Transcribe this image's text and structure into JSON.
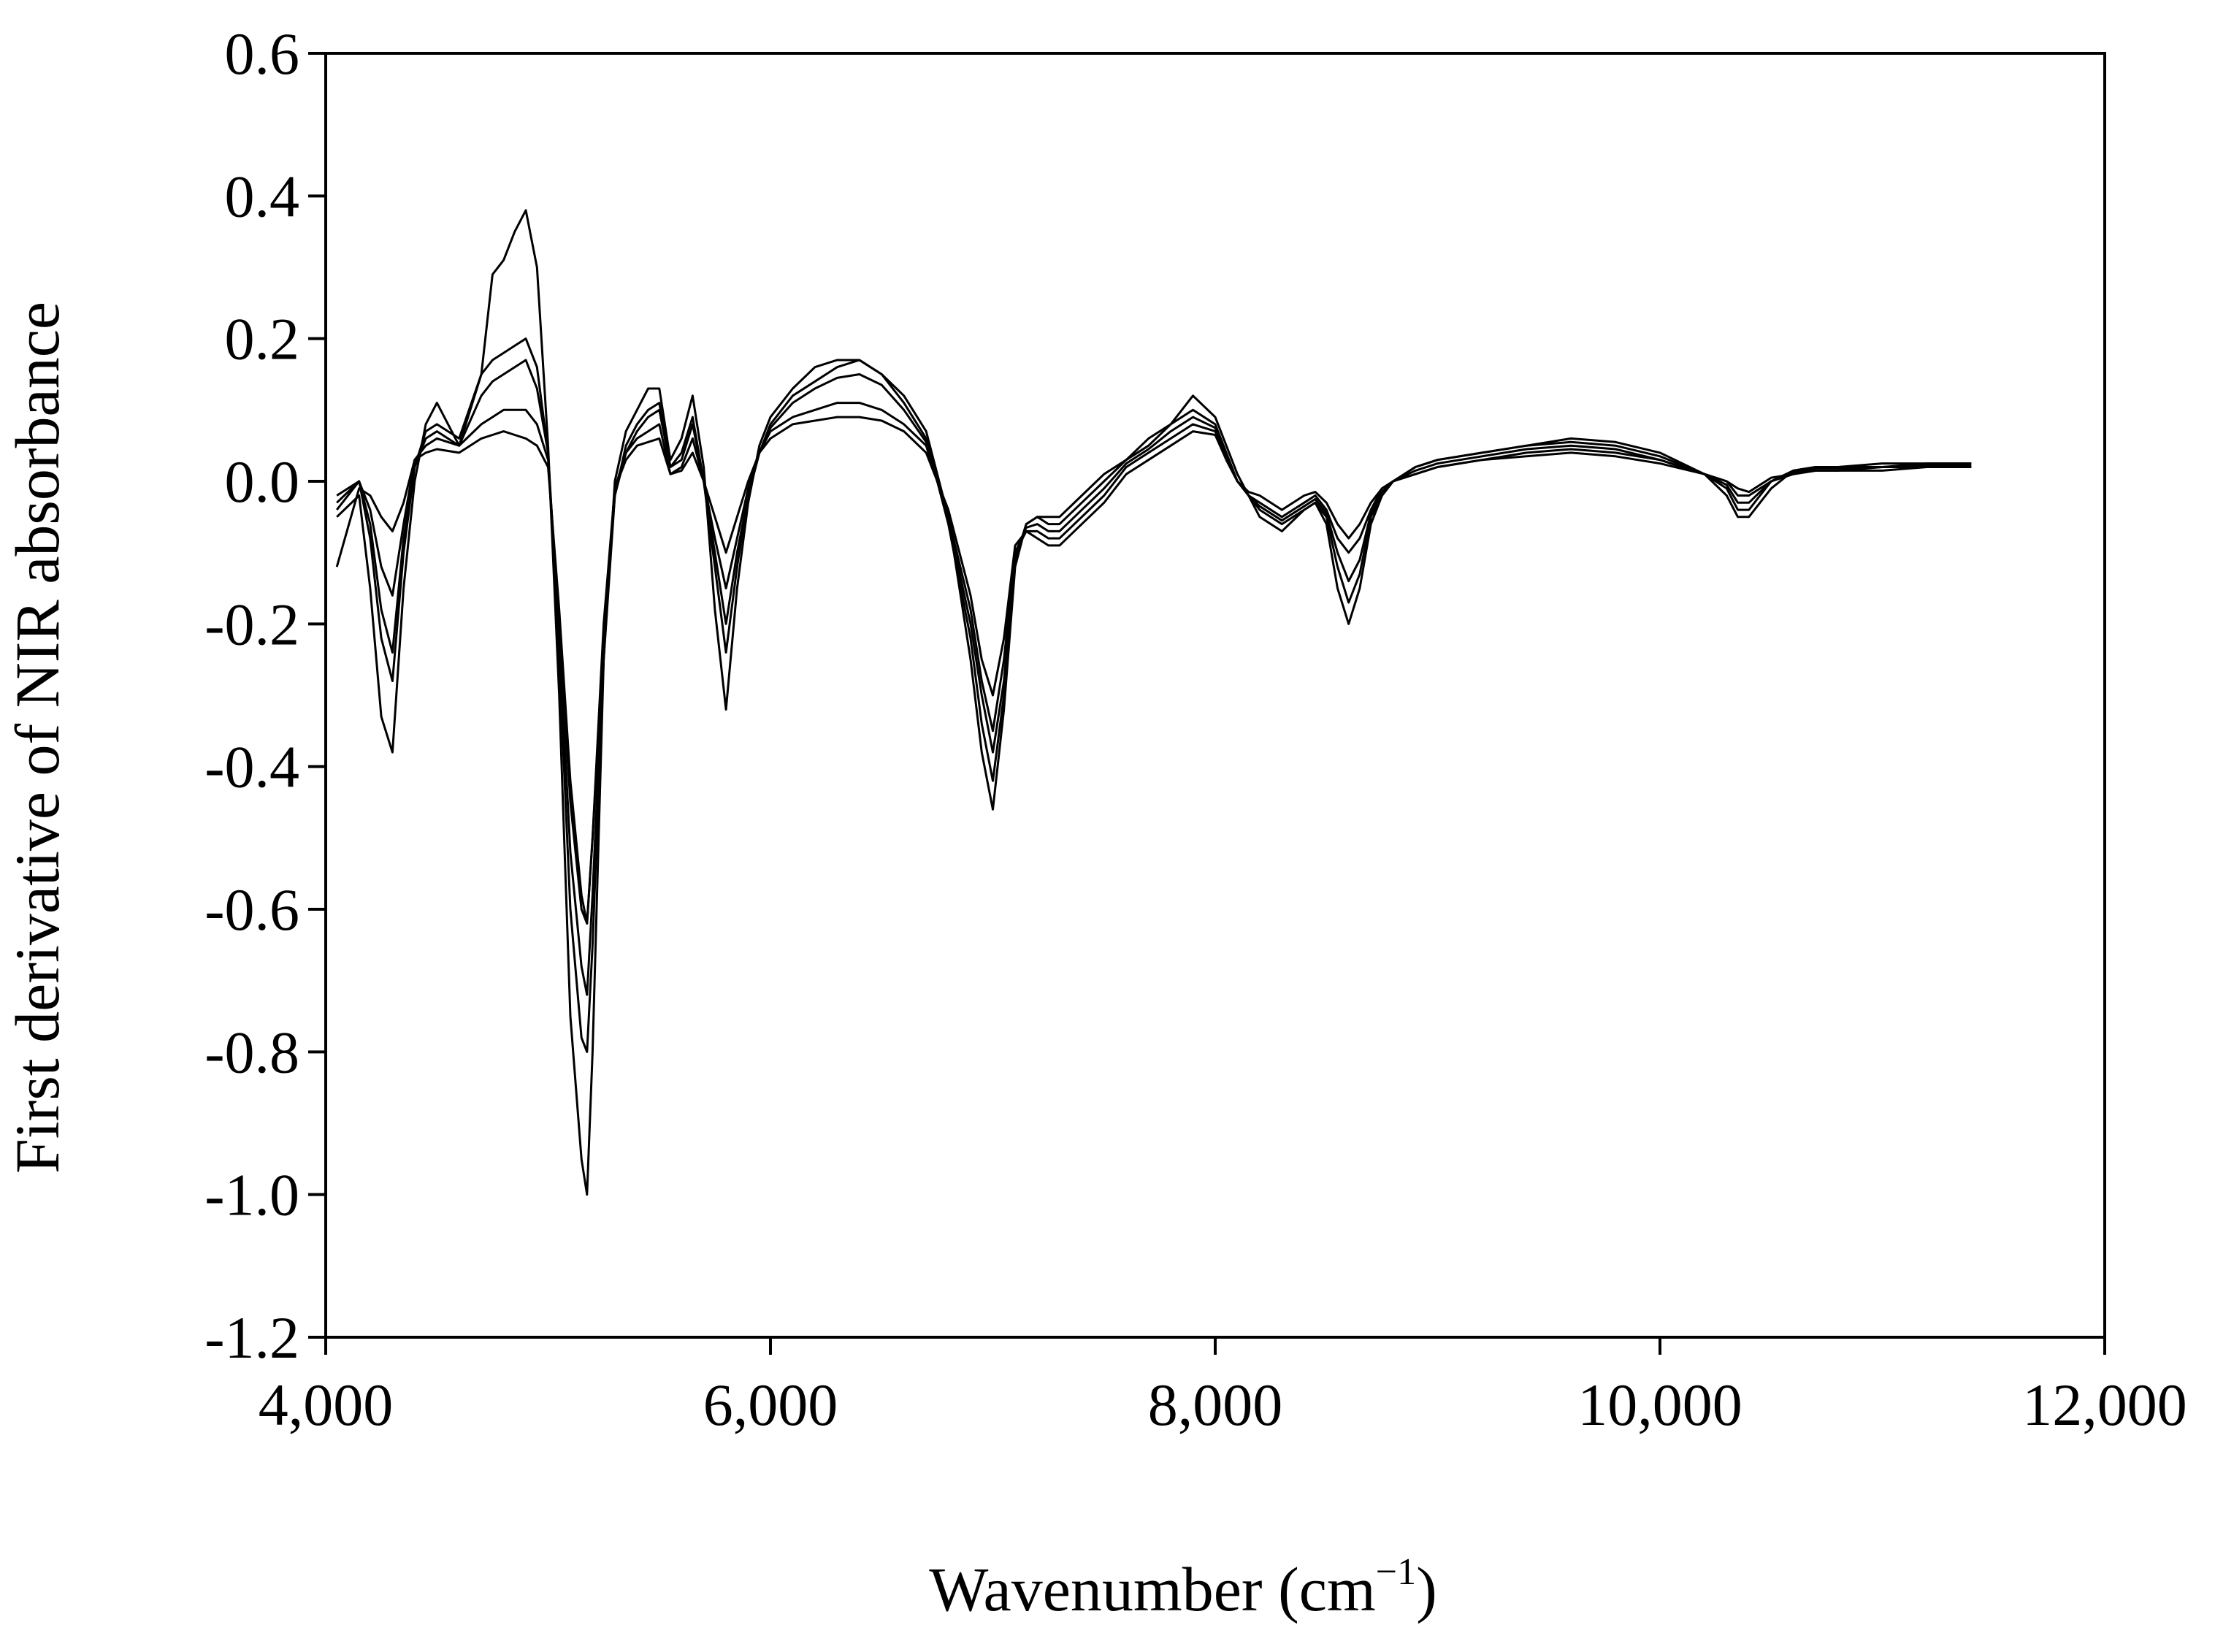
{
  "chart_data": {
    "type": "line",
    "title": "",
    "xlabel": "Wavenumber (cm",
    "xlabel_superscript": "−1",
    "xlabel_suffix": ")",
    "ylabel": "First derivative of NIR absorbance",
    "xlim": [
      4000,
      12000
    ],
    "ylim": [
      -1.2,
      0.6
    ],
    "x_ticks": [
      4000,
      6000,
      8000,
      10000,
      12000
    ],
    "x_tick_labels": [
      "4,000",
      "6,000",
      "8,000",
      "10,000",
      "12,000"
    ],
    "y_ticks": [
      0.6,
      0.4,
      0.2,
      0.0,
      -0.2,
      -0.4,
      -0.6,
      -0.8,
      -1.0,
      -1.2
    ],
    "y_tick_labels": [
      "0.6",
      "0.4",
      "0.2",
      "0.0",
      "-0.2",
      "-0.4",
      "-0.6",
      "-0.8",
      "-1.0",
      "-1.2"
    ],
    "grid": false,
    "legend": "none",
    "line_color": "#000000",
    "series": [
      {
        "x": [
          4050,
          4150,
          4200,
          4250,
          4300,
          4350,
          4400,
          4450,
          4500,
          4600,
          4700,
          4750,
          4800,
          4850,
          4900,
          4950,
          5000,
          5050,
          5100,
          5150,
          5175,
          5200,
          5250,
          5300,
          5350,
          5400,
          5450,
          5500,
          5550,
          5600,
          5650,
          5700,
          5750,
          5800,
          5850,
          5900,
          5950,
          6000,
          6100,
          6200,
          6300,
          6400,
          6500,
          6600,
          6700,
          6800,
          6900,
          6950,
          7000,
          7050,
          7100,
          7150,
          7200,
          7250,
          7300,
          7400,
          7500,
          7600,
          7700,
          7800,
          7900,
          8000,
          8050,
          8100,
          8150,
          8200,
          8300,
          8400,
          8450,
          8500,
          8550,
          8600,
          8650,
          8700,
          8750,
          8800,
          8900,
          9000,
          9200,
          9400,
          9600,
          9800,
          10000,
          10200,
          10300,
          10350,
          10400,
          10450,
          10500,
          10600,
          10700,
          10800,
          11000,
          11200,
          11400
        ],
        "y": [
          -0.05,
          -0.02,
          -0.15,
          -0.33,
          -0.38,
          -0.15,
          0.0,
          0.08,
          0.11,
          0.05,
          0.15,
          0.29,
          0.31,
          0.35,
          0.38,
          0.3,
          0.05,
          -0.3,
          -0.75,
          -0.95,
          -1.0,
          -0.8,
          -0.25,
          0.0,
          0.07,
          0.1,
          0.13,
          0.13,
          0.03,
          0.06,
          0.12,
          0.02,
          -0.18,
          -0.32,
          -0.15,
          -0.03,
          0.05,
          0.09,
          0.13,
          0.16,
          0.17,
          0.17,
          0.15,
          0.12,
          0.07,
          -0.05,
          -0.25,
          -0.38,
          -0.46,
          -0.32,
          -0.12,
          -0.06,
          -0.05,
          -0.05,
          -0.05,
          -0.02,
          0.01,
          0.03,
          0.06,
          0.08,
          0.12,
          0.09,
          0.05,
          0.01,
          -0.02,
          -0.05,
          -0.07,
          -0.04,
          -0.03,
          -0.06,
          -0.15,
          -0.2,
          -0.15,
          -0.06,
          -0.02,
          0.0,
          0.02,
          0.03,
          0.04,
          0.05,
          0.06,
          0.055,
          0.04,
          0.01,
          -0.02,
          -0.05,
          -0.05,
          -0.03,
          -0.01,
          0.015,
          0.02,
          0.02,
          0.025,
          0.025,
          0.025
        ]
      },
      {
        "x": [
          4050,
          4150,
          4200,
          4250,
          4300,
          4350,
          4400,
          4450,
          4500,
          4600,
          4700,
          4750,
          4800,
          4850,
          4900,
          4950,
          5000,
          5050,
          5100,
          5150,
          5175,
          5200,
          5250,
          5300,
          5350,
          5400,
          5450,
          5500,
          5550,
          5600,
          5650,
          5700,
          5750,
          5800,
          5850,
          5900,
          5950,
          6000,
          6100,
          6200,
          6300,
          6400,
          6500,
          6600,
          6700,
          6800,
          6900,
          6950,
          7000,
          7050,
          7100,
          7150,
          7200,
          7250,
          7300,
          7400,
          7500,
          7600,
          7700,
          7800,
          7900,
          8000,
          8050,
          8100,
          8150,
          8200,
          8300,
          8400,
          8450,
          8500,
          8550,
          8600,
          8650,
          8700,
          8750,
          8800,
          8900,
          9000,
          9200,
          9400,
          9600,
          9800,
          10000,
          10200,
          10300,
          10350,
          10400,
          10450,
          10500,
          10600,
          10700,
          10800,
          11000,
          11200,
          11400
        ],
        "y": [
          -0.03,
          0.0,
          -0.08,
          -0.22,
          -0.28,
          -0.1,
          0.02,
          0.07,
          0.08,
          0.06,
          0.15,
          0.17,
          0.18,
          0.19,
          0.2,
          0.16,
          0.04,
          -0.25,
          -0.6,
          -0.78,
          -0.8,
          -0.65,
          -0.25,
          -0.02,
          0.05,
          0.08,
          0.1,
          0.11,
          0.02,
          0.04,
          0.09,
          0.0,
          -0.12,
          -0.24,
          -0.12,
          -0.02,
          0.04,
          0.08,
          0.12,
          0.14,
          0.16,
          0.17,
          0.15,
          0.11,
          0.06,
          -0.06,
          -0.22,
          -0.34,
          -0.42,
          -0.3,
          -0.11,
          -0.06,
          -0.05,
          -0.06,
          -0.06,
          -0.03,
          0.0,
          0.03,
          0.05,
          0.08,
          0.1,
          0.08,
          0.04,
          0.0,
          -0.02,
          -0.04,
          -0.06,
          -0.04,
          -0.03,
          -0.05,
          -0.12,
          -0.17,
          -0.13,
          -0.05,
          -0.02,
          0.0,
          0.02,
          0.03,
          0.04,
          0.05,
          0.055,
          0.05,
          0.035,
          0.01,
          -0.01,
          -0.04,
          -0.04,
          -0.02,
          0.0,
          0.015,
          0.02,
          0.02,
          0.02,
          0.025,
          0.025
        ]
      },
      {
        "x": [
          4050,
          4150,
          4200,
          4250,
          4300,
          4350,
          4400,
          4450,
          4500,
          4600,
          4700,
          4750,
          4800,
          4850,
          4900,
          4950,
          5000,
          5050,
          5100,
          5150,
          5175,
          5200,
          5250,
          5300,
          5350,
          5400,
          5450,
          5500,
          5550,
          5600,
          5650,
          5700,
          5750,
          5800,
          5850,
          5900,
          5950,
          6000,
          6100,
          6200,
          6300,
          6400,
          6500,
          6600,
          6700,
          6800,
          6900,
          6950,
          7000,
          7050,
          7100,
          7150,
          7200,
          7250,
          7300,
          7400,
          7500,
          7600,
          7700,
          7800,
          7900,
          8000,
          8050,
          8100,
          8150,
          8200,
          8300,
          8400,
          8450,
          8500,
          8550,
          8600,
          8650,
          8700,
          8750,
          8800,
          8900,
          9000,
          9200,
          9400,
          9600,
          9800,
          10000,
          10200,
          10300,
          10350,
          10400,
          10450,
          10500,
          10600,
          10700,
          10800,
          11000,
          11200,
          11400
        ],
        "y": [
          -0.02,
          0.0,
          -0.04,
          -0.12,
          -0.16,
          -0.06,
          0.03,
          0.05,
          0.06,
          0.05,
          0.08,
          0.09,
          0.1,
          0.1,
          0.1,
          0.08,
          0.03,
          -0.2,
          -0.45,
          -0.6,
          -0.62,
          -0.5,
          -0.22,
          -0.02,
          0.04,
          0.06,
          0.07,
          0.08,
          0.01,
          0.02,
          0.06,
          0.0,
          -0.08,
          -0.15,
          -0.08,
          -0.01,
          0.04,
          0.07,
          0.09,
          0.1,
          0.11,
          0.11,
          0.1,
          0.08,
          0.05,
          -0.05,
          -0.18,
          -0.28,
          -0.35,
          -0.25,
          -0.1,
          -0.07,
          -0.07,
          -0.08,
          -0.08,
          -0.05,
          -0.02,
          0.02,
          0.04,
          0.06,
          0.08,
          0.07,
          0.03,
          0.0,
          -0.02,
          -0.03,
          -0.05,
          -0.03,
          -0.02,
          -0.04,
          -0.08,
          -0.1,
          -0.08,
          -0.04,
          -0.01,
          0.0,
          0.01,
          0.02,
          0.03,
          0.04,
          0.045,
          0.04,
          0.03,
          0.01,
          0.0,
          -0.02,
          -0.02,
          -0.01,
          0.0,
          0.01,
          0.015,
          0.015,
          0.02,
          0.02,
          0.02
        ]
      },
      {
        "x": [
          4050,
          4150,
          4200,
          4250,
          4300,
          4350,
          4400,
          4450,
          4500,
          4600,
          4700,
          4750,
          4800,
          4850,
          4900,
          4950,
          5000,
          5050,
          5100,
          5150,
          5175,
          5200,
          5250,
          5300,
          5350,
          5400,
          5450,
          5500,
          5550,
          5600,
          5650,
          5700,
          5750,
          5800,
          5850,
          5900,
          5950,
          6000,
          6100,
          6200,
          6300,
          6400,
          6500,
          6600,
          6700,
          6800,
          6900,
          6950,
          7000,
          7050,
          7100,
          7150,
          7200,
          7250,
          7300,
          7400,
          7500,
          7600,
          7700,
          7800,
          7900,
          8000,
          8050,
          8100,
          8150,
          8200,
          8300,
          8400,
          8450,
          8500,
          8550,
          8600,
          8650,
          8700,
          8750,
          8800,
          8900,
          9000,
          9200,
          9400,
          9600,
          9800,
          10000,
          10200,
          10300,
          10350,
          10400,
          10450,
          10500,
          10600,
          10700,
          10800,
          11000,
          11200,
          11400
        ],
        "y": [
          -0.12,
          -0.01,
          -0.02,
          -0.05,
          -0.07,
          -0.03,
          0.03,
          0.04,
          0.045,
          0.04,
          0.06,
          0.065,
          0.07,
          0.065,
          0.06,
          0.05,
          0.02,
          -0.18,
          -0.42,
          -0.58,
          -0.62,
          -0.5,
          -0.2,
          -0.01,
          0.03,
          0.05,
          0.055,
          0.06,
          0.01,
          0.015,
          0.04,
          0.0,
          -0.05,
          -0.1,
          -0.05,
          0.0,
          0.04,
          0.06,
          0.08,
          0.085,
          0.09,
          0.09,
          0.085,
          0.07,
          0.04,
          -0.04,
          -0.16,
          -0.25,
          -0.3,
          -0.22,
          -0.09,
          -0.07,
          -0.08,
          -0.09,
          -0.09,
          -0.06,
          -0.03,
          0.01,
          0.03,
          0.05,
          0.07,
          0.065,
          0.03,
          0.0,
          -0.015,
          -0.02,
          -0.04,
          -0.02,
          -0.015,
          -0.03,
          -0.06,
          -0.08,
          -0.06,
          -0.03,
          -0.01,
          0.0,
          0.01,
          0.02,
          0.03,
          0.035,
          0.04,
          0.035,
          0.025,
          0.01,
          0.0,
          -0.01,
          -0.015,
          -0.005,
          0.005,
          0.01,
          0.015,
          0.015,
          0.015,
          0.02,
          0.02
        ]
      },
      {
        "x": [
          4050,
          4150,
          4200,
          4250,
          4300,
          4350,
          4400,
          4450,
          4500,
          4600,
          4700,
          4750,
          4800,
          4850,
          4900,
          4950,
          5000,
          5050,
          5100,
          5150,
          5175,
          5200,
          5250,
          5300,
          5350,
          5400,
          5450,
          5500,
          5550,
          5600,
          5650,
          5700,
          5750,
          5800,
          5850,
          5900,
          5950,
          6000,
          6100,
          6200,
          6300,
          6400,
          6500,
          6600,
          6700,
          6800,
          6900,
          6950,
          7000,
          7050,
          7100,
          7150,
          7200,
          7250,
          7300,
          7400,
          7500,
          7600,
          7700,
          7800,
          7900,
          8000,
          8050,
          8100,
          8150,
          8200,
          8300,
          8400,
          8450,
          8500,
          8550,
          8600,
          8650,
          8700,
          8750,
          8800,
          8900,
          9000,
          9200,
          9400,
          9600,
          9800,
          10000,
          10200,
          10300,
          10350,
          10400,
          10450,
          10500,
          10600,
          10700,
          10800,
          11000,
          11200,
          11400
        ],
        "y": [
          -0.04,
          0.0,
          -0.06,
          -0.18,
          -0.24,
          -0.08,
          0.02,
          0.06,
          0.07,
          0.05,
          0.12,
          0.14,
          0.15,
          0.16,
          0.17,
          0.13,
          0.04,
          -0.22,
          -0.52,
          -0.68,
          -0.72,
          -0.58,
          -0.23,
          -0.01,
          0.04,
          0.07,
          0.09,
          0.1,
          0.02,
          0.03,
          0.08,
          0.0,
          -0.1,
          -0.2,
          -0.1,
          -0.02,
          0.04,
          0.075,
          0.11,
          0.13,
          0.145,
          0.15,
          0.135,
          0.1,
          0.055,
          -0.055,
          -0.2,
          -0.3,
          -0.38,
          -0.28,
          -0.1,
          -0.065,
          -0.06,
          -0.07,
          -0.07,
          -0.04,
          -0.01,
          0.025,
          0.045,
          0.07,
          0.09,
          0.075,
          0.035,
          0.0,
          -0.02,
          -0.035,
          -0.055,
          -0.035,
          -0.025,
          -0.045,
          -0.1,
          -0.14,
          -0.11,
          -0.045,
          -0.015,
          0.0,
          0.015,
          0.025,
          0.035,
          0.045,
          0.05,
          0.045,
          0.03,
          0.01,
          -0.005,
          -0.03,
          -0.03,
          -0.015,
          0.0,
          0.012,
          0.018,
          0.018,
          0.02,
          0.022,
          0.022
        ]
      }
    ]
  }
}
